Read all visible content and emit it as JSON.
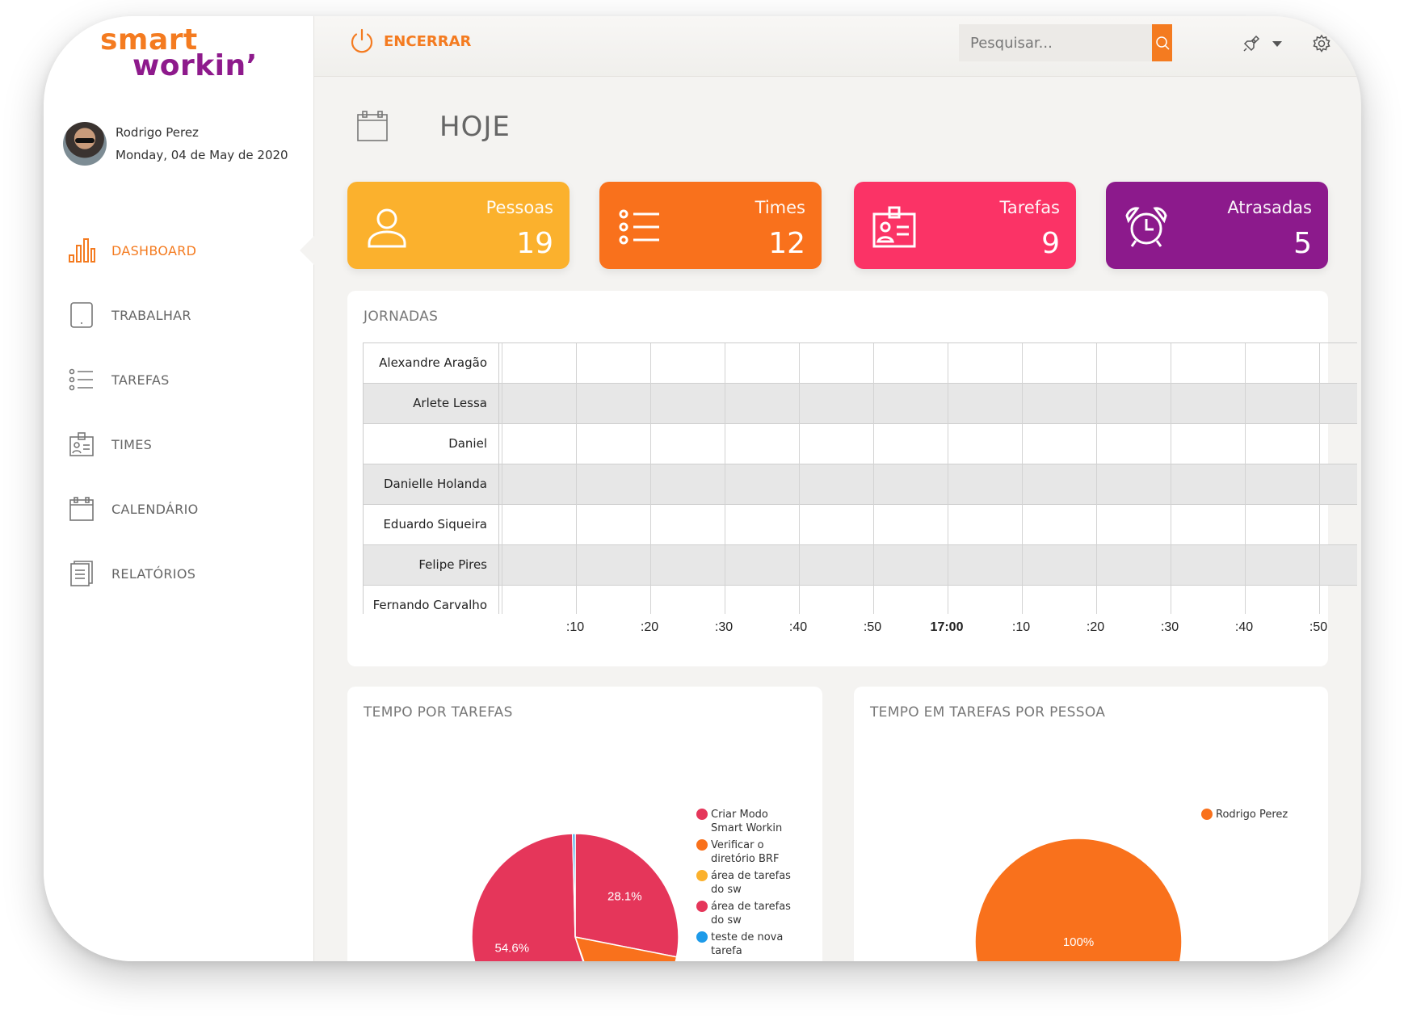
{
  "brand": {
    "line1": "smart",
    "line2": "workin’"
  },
  "user": {
    "name": "Rodrigo Perez",
    "date": "Monday, 04 de May de 2020"
  },
  "nav": [
    {
      "label": "DASHBOARD",
      "icon": "bar-chart-icon",
      "active": true
    },
    {
      "label": "TRABALHAR",
      "icon": "tablet-icon",
      "active": false
    },
    {
      "label": "TAREFAS",
      "icon": "list-icon",
      "active": false
    },
    {
      "label": "TIMES",
      "icon": "id-badge-icon",
      "active": false
    },
    {
      "label": "CALENDÁRIO",
      "icon": "calendar-icon",
      "active": false
    },
    {
      "label": "RELATÓRIOS",
      "icon": "document-icon",
      "active": false
    }
  ],
  "topbar": {
    "end_label": "ENCERRAR",
    "search_placeholder": "Pesquisar...",
    "accent": "#f47b20"
  },
  "page": {
    "title": "HOJE"
  },
  "stats": [
    {
      "label": "Pessoas",
      "value": "19",
      "color": "#fbb12d",
      "icon": "person-icon"
    },
    {
      "label": "Times",
      "value": "12",
      "color": "#f9711c",
      "icon": "list-icon"
    },
    {
      "label": "Tarefas",
      "value": "9",
      "color": "#fb3366",
      "icon": "id-badge-icon"
    },
    {
      "label": "Atrasadas",
      "value": "5",
      "color": "#8c1a8c",
      "icon": "alarm-clock-icon"
    }
  ],
  "timeline": {
    "title": "JORNADAS",
    "people": [
      "Alexandre Aragão",
      "Arlete Lessa",
      "Daniel",
      "Danielle Holanda",
      "Eduardo Siqueira",
      "Felipe Pires",
      "Fernando Carvalho"
    ],
    "ticks": [
      ":10",
      ":20",
      ":30",
      ":40",
      ":50",
      "17:00",
      ":10",
      ":20",
      ":30",
      ":40",
      ":50"
    ],
    "bold_tick": "17:00"
  },
  "charts": {
    "tasks_title": "TEMPO POR TAREFAS",
    "people_title": "TEMPO EM TAREFAS POR PESSOA"
  },
  "chart_data": [
    {
      "type": "pie",
      "title": "TEMPO POR TAREFAS",
      "categories": [
        "Criar Modo Smart Workin",
        "Verificar o diretório BRF",
        "área de tarefas do sw",
        "área de tarefas do sw",
        "teste de nova tarefa"
      ],
      "values": [
        28.1,
        16.5,
        0.4,
        54.6,
        0.4
      ],
      "labels": [
        "28.1%",
        "",
        "",
        "54.6%",
        ""
      ],
      "colors": [
        "#e5365a",
        "#f9711c",
        "#fbb12d",
        "#e5365a",
        "#1e9be9"
      ],
      "legend": "right"
    },
    {
      "type": "pie",
      "title": "TEMPO EM TAREFAS POR PESSOA",
      "categories": [
        "Rodrigo Perez"
      ],
      "values": [
        100
      ],
      "labels": [
        "100%"
      ],
      "colors": [
        "#f9711c"
      ],
      "legend": "top-right"
    }
  ]
}
